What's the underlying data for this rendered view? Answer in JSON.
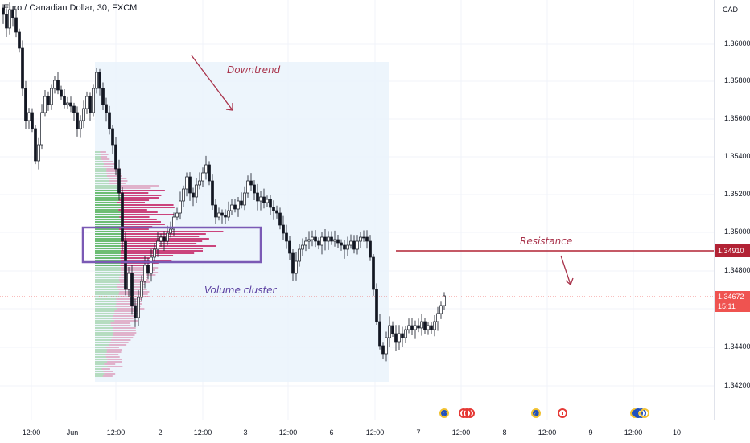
{
  "chart": {
    "title": "Euro / Canadian Dollar, 30, FXCM",
    "currency": "CAD",
    "y_ticks": [
      "1.36000",
      "1.35800",
      "1.35600",
      "1.35400",
      "1.35200",
      "1.35000",
      "1.34800",
      "1.34600",
      "1.34400",
      "1.34200"
    ],
    "x_ticks": [
      "12:00",
      "Jun",
      "12:00",
      "2",
      "12:00",
      "3",
      "12:00",
      "6",
      "12:00",
      "7",
      "12:00",
      "8",
      "12:00",
      "9",
      "12:00",
      "10"
    ],
    "resistance_price": "1.34910",
    "last_price": "1.34672",
    "countdown": "15:11",
    "colors": {
      "up": "#26a69a",
      "down": "#ef5350",
      "candle": "#131722",
      "resistance": "#b22234",
      "annotation": "#a8324a",
      "box": "#7b5ab5",
      "range_fill": "#eaf3fc",
      "vp_up": "#4caf50",
      "vp_down": "#c2185b"
    }
  },
  "annotations": {
    "downtrend": "Downtrend",
    "resistance": "Resistance",
    "volume_cluster": "Volume cluster"
  },
  "events": [
    {
      "icon": "eu-flag-icon"
    },
    {
      "icon": "ca-flag-icon"
    },
    {
      "icon": "eu-flag-icon"
    },
    {
      "icon": "ca-flag-icon"
    },
    {
      "icon": "eu-flag-icon"
    }
  ]
}
